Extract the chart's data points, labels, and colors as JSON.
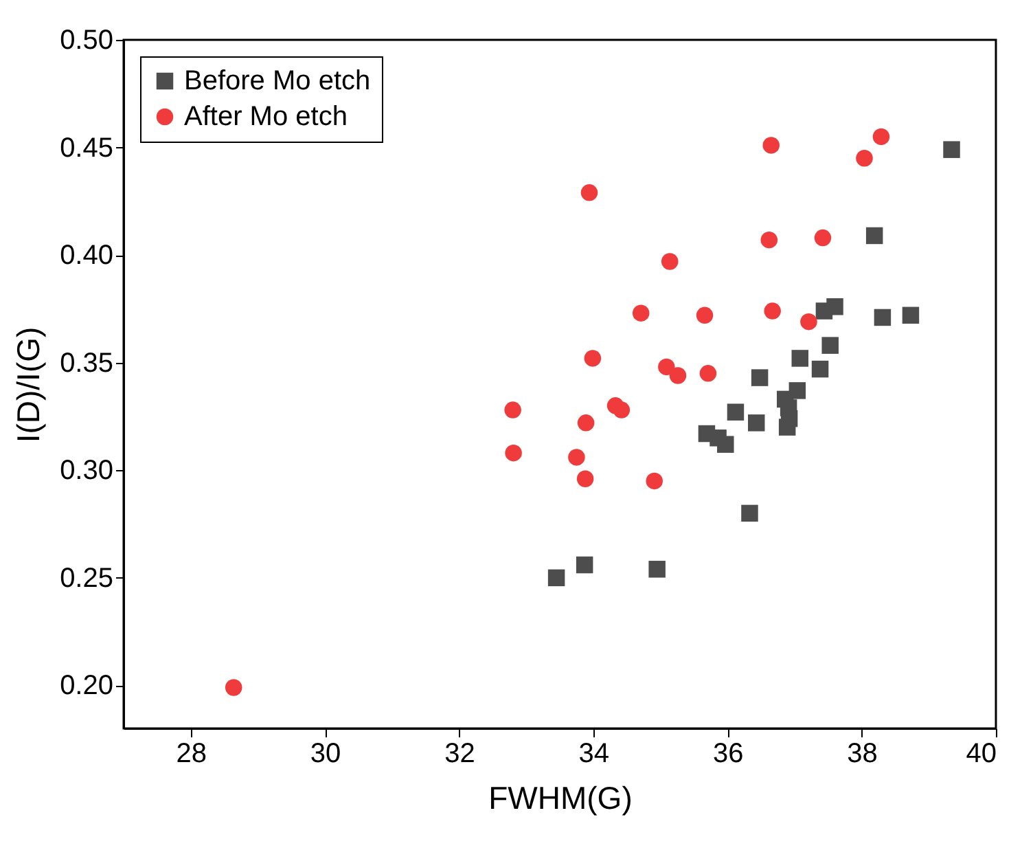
{
  "chart_data": {
    "type": "scatter",
    "xlabel": "FWHM(G)",
    "ylabel": "I(D)/I(G)",
    "xlim": [
      27,
      40
    ],
    "xticks": [
      28,
      30,
      32,
      34,
      36,
      38,
      40
    ],
    "ylim": [
      0.18,
      0.5
    ],
    "yticks": [
      {
        "value": 0.2,
        "label": "0.20"
      },
      0.25,
      {
        "value": 0.3,
        "label": "0.30"
      },
      0.35,
      {
        "value": 0.4,
        "label": "0.40"
      },
      0.45,
      {
        "value": 0.5,
        "label": "0.50"
      }
    ],
    "grid": false,
    "legend": "top left",
    "series": [
      {
        "name": "Before Mo etch",
        "color": "#4d4d4d",
        "marker": "square",
        "x": [
          39.34,
          38.19,
          37.44,
          37.6,
          38.31,
          38.73,
          37.53,
          37.08,
          37.38,
          36.48,
          37.04,
          36.86,
          36.91,
          36.92,
          36.89,
          36.12,
          36.43,
          35.69,
          35.86,
          35.97,
          36.33,
          33.87,
          33.45,
          34.95
        ],
        "values": [
          0.449,
          0.409,
          0.374,
          0.376,
          0.371,
          0.372,
          0.358,
          0.352,
          0.347,
          0.343,
          0.337,
          0.333,
          0.329,
          0.324,
          0.32,
          0.327,
          0.322,
          0.317,
          0.315,
          0.312,
          0.28,
          0.256,
          0.25,
          0.254
        ]
      },
      {
        "name": "After Mo etch",
        "color": "#ef3b3b",
        "marker": "circle",
        "x": [
          36.65,
          38.29,
          38.04,
          33.94,
          36.62,
          37.42,
          35.14,
          34.71,
          35.66,
          36.67,
          37.21,
          33.99,
          35.09,
          35.26,
          35.71,
          32.8,
          34.33,
          34.42,
          33.89,
          32.81,
          33.75,
          33.88,
          34.91,
          28.64
        ],
        "values": [
          0.451,
          0.455,
          0.445,
          0.429,
          0.407,
          0.408,
          0.397,
          0.373,
          0.372,
          0.374,
          0.369,
          0.352,
          0.348,
          0.344,
          0.345,
          0.328,
          0.33,
          0.328,
          0.322,
          0.308,
          0.306,
          0.296,
          0.295,
          0.199
        ]
      }
    ]
  }
}
